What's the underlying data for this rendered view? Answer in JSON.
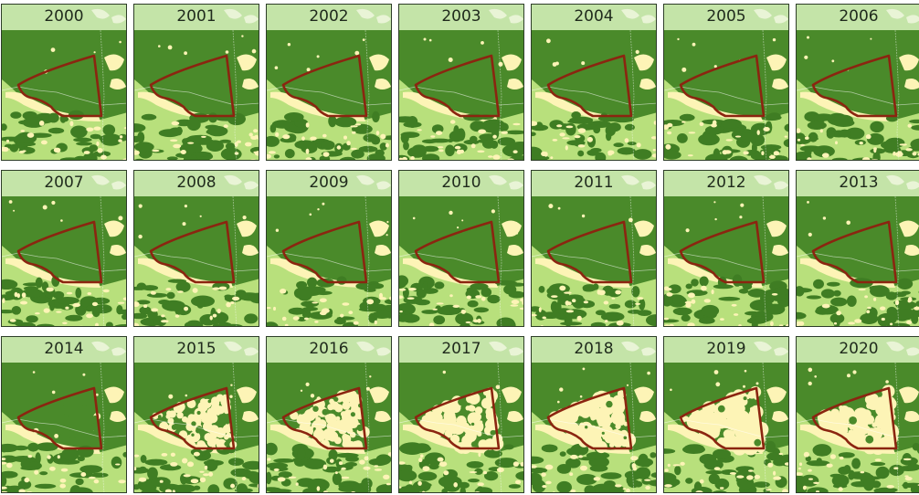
{
  "map": {
    "colors": {
      "forest": "#4a8a2a",
      "forest_edge": "#3f7d23",
      "cleared": "#fdf4b6",
      "secondary": "#b8e07c",
      "header_band": "#c4e4a8",
      "boundary": "#8b2510",
      "border_line": "#ffffff",
      "frame": "#2d3d28"
    },
    "columns": 7,
    "panels": [
      {
        "year": "2000",
        "clearing": 0.0
      },
      {
        "year": "2001",
        "clearing": 0.0
      },
      {
        "year": "2002",
        "clearing": 0.0
      },
      {
        "year": "2003",
        "clearing": 0.0
      },
      {
        "year": "2004",
        "clearing": 0.0
      },
      {
        "year": "2005",
        "clearing": 0.0
      },
      {
        "year": "2006",
        "clearing": 0.0
      },
      {
        "year": "2007",
        "clearing": 0.0
      },
      {
        "year": "2008",
        "clearing": 0.0
      },
      {
        "year": "2009",
        "clearing": 0.0
      },
      {
        "year": "2010",
        "clearing": 0.0
      },
      {
        "year": "2011",
        "clearing": 0.0
      },
      {
        "year": "2012",
        "clearing": 0.0
      },
      {
        "year": "2013",
        "clearing": 0.0
      },
      {
        "year": "2014",
        "clearing": 0.02
      },
      {
        "year": "2015",
        "clearing": 0.45
      },
      {
        "year": "2016",
        "clearing": 0.55
      },
      {
        "year": "2017",
        "clearing": 0.65
      },
      {
        "year": "2018",
        "clearing": 0.8
      },
      {
        "year": "2019",
        "clearing": 0.9
      },
      {
        "year": "2020",
        "clearing": 0.85
      }
    ]
  }
}
